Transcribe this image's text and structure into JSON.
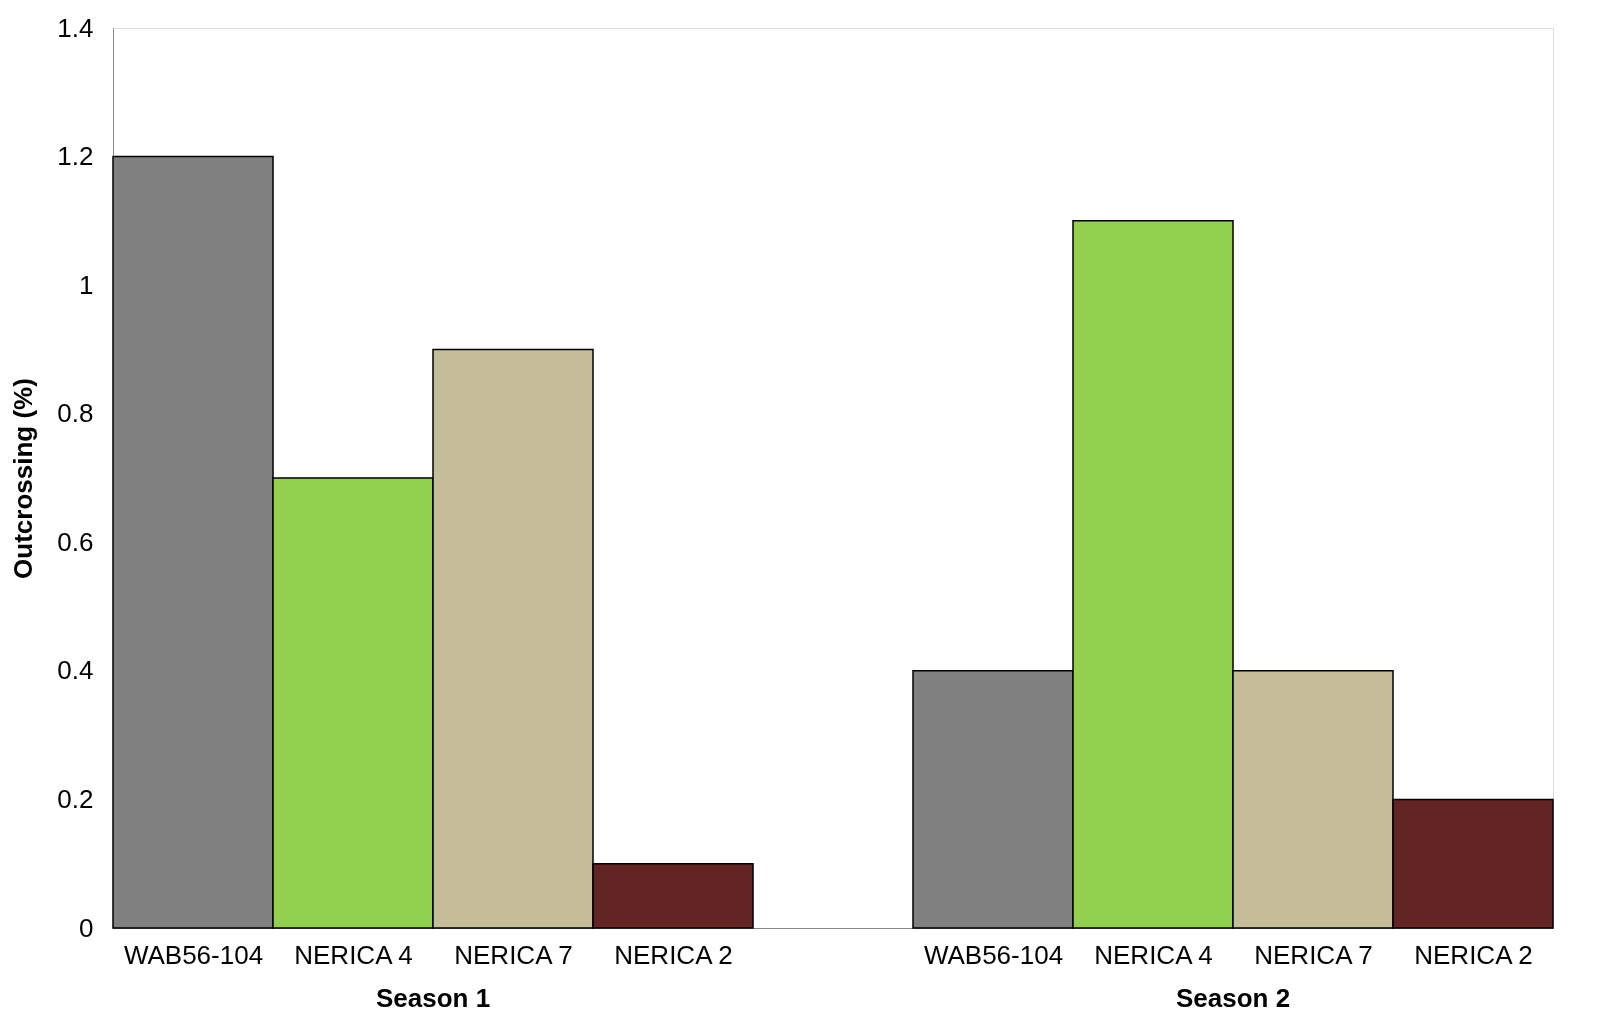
{
  "chart_data": {
    "type": "bar",
    "ylabel": "Outcrossing (%)",
    "categories": [
      "WAB56-104",
      "NERICA 4",
      "NERICA 7",
      "NERICA 2",
      null,
      "WAB56-104",
      "NERICA 4",
      "NERICA 7",
      "NERICA 2"
    ],
    "values": [
      1.2,
      0.7,
      0.9,
      0.1,
      null,
      0.4,
      1.1,
      0.4,
      0.2
    ],
    "colors": [
      "#808080",
      "#92d050",
      "#c4bd97",
      "#632523",
      null,
      "#808080",
      "#92d050",
      "#c4bd97",
      "#632523"
    ],
    "annotations": [
      "Season 1",
      "Season 2"
    ],
    "ylim": [
      0,
      1.4
    ],
    "yticks": [
      0,
      0.2,
      0.4,
      0.6,
      0.8,
      1,
      1.2,
      1.4
    ],
    "grid": false
  }
}
